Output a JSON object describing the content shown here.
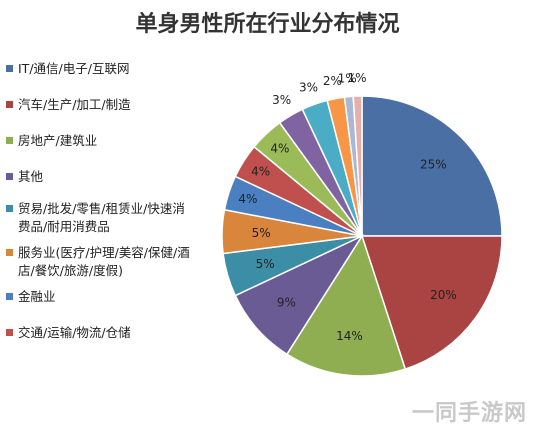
{
  "title": "单身男性所在行业分布情况",
  "watermark": "一同手游网",
  "chart_data": {
    "type": "pie",
    "title": "单身男性所在行业分布情况",
    "legend_position": "left",
    "labels_shown": [
      "25%",
      "20%",
      "14%",
      "9%",
      "5%",
      "5%",
      "4%",
      "4%",
      "4%",
      "3%",
      "3%",
      "2%",
      "1%",
      "1%"
    ],
    "values": [
      25,
      20,
      14,
      9,
      5,
      5,
      4,
      4,
      4,
      3,
      3,
      2,
      1,
      1
    ],
    "colors": [
      "#4a6fa5",
      "#a94442",
      "#8fae52",
      "#6b5b95",
      "#3b8ea5",
      "#d9853b",
      "#4a7fc1",
      "#c0504d",
      "#9bbb59",
      "#8064a2",
      "#4bacc6",
      "#f79646",
      "#aab8d6",
      "#e6b0aa"
    ],
    "legend": [
      {
        "label": "IT/通信/电子/互联网",
        "color": "#4a6fa5"
      },
      {
        "label": "汽车/生产/加工/制造",
        "color": "#a94442"
      },
      {
        "label": "房地产/建筑业",
        "color": "#8fae52"
      },
      {
        "label": "其他",
        "color": "#6b5b95"
      },
      {
        "label": "贸易/批发/零售/租赁业/快速消费品/耐用消费品",
        "color": "#3b8ea5"
      },
      {
        "label": "服务业(医疗/护理/美容/保健/酒店/餐饮/旅游/度假)",
        "color": "#d9853b"
      },
      {
        "label": "金融业",
        "color": "#4a7fc1"
      },
      {
        "label": "交通/运输/物流/仓储",
        "color": "#c0504d"
      }
    ]
  }
}
